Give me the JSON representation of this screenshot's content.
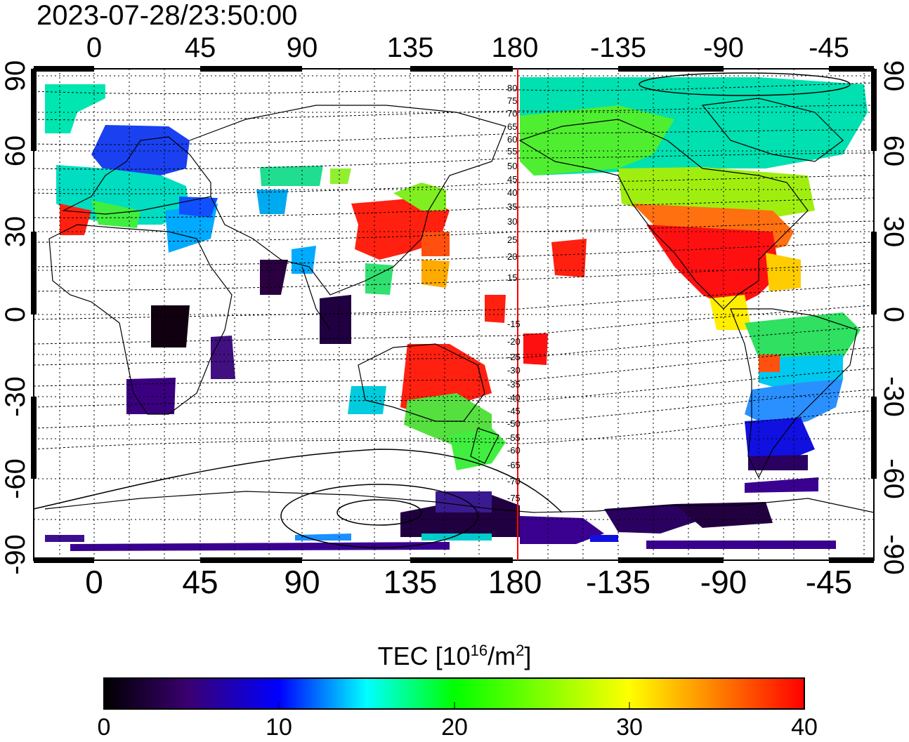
{
  "timestamp": "2023-07-28/23:50:00",
  "map": {
    "top_lon_ticks": [
      "0",
      "45",
      "90",
      "135",
      "180",
      "-135",
      "-90",
      "-45"
    ],
    "bottom_lon_ticks": [
      "0",
      "45",
      "90",
      "135",
      "180",
      "-135",
      "-90",
      "-45"
    ],
    "left_lat_ticks": [
      "90",
      "60",
      "30",
      "0",
      "-30",
      "-60",
      "-90"
    ],
    "right_lat_ticks": [
      "90",
      "60",
      "30",
      "0",
      "-30",
      "-60",
      "-90"
    ],
    "contour_labels_north": [
      "80",
      "75",
      "70",
      "65",
      "60",
      "55",
      "50",
      "45",
      "40",
      "35",
      "30",
      "25",
      "20",
      "15"
    ],
    "contour_labels_south": [
      "-15",
      "-20",
      "-25",
      "-30",
      "-35",
      "-40",
      "-45",
      "-50",
      "-55",
      "-60",
      "-65",
      "-70",
      "-75"
    ],
    "meridian_line_color": "#ff0000"
  },
  "colorbar": {
    "title_prefix": "TEC  [10",
    "title_sup1": "16",
    "title_mid": "/m",
    "title_sup2": "2",
    "title_suffix": "]",
    "ticks": [
      "0",
      "10",
      "20",
      "30",
      "40"
    ],
    "range": [
      0,
      40
    ],
    "colors": [
      "#000000",
      "#3a0070",
      "#0000ff",
      "#00ffff",
      "#00ff00",
      "#ffff00",
      "#ff0000"
    ]
  }
}
